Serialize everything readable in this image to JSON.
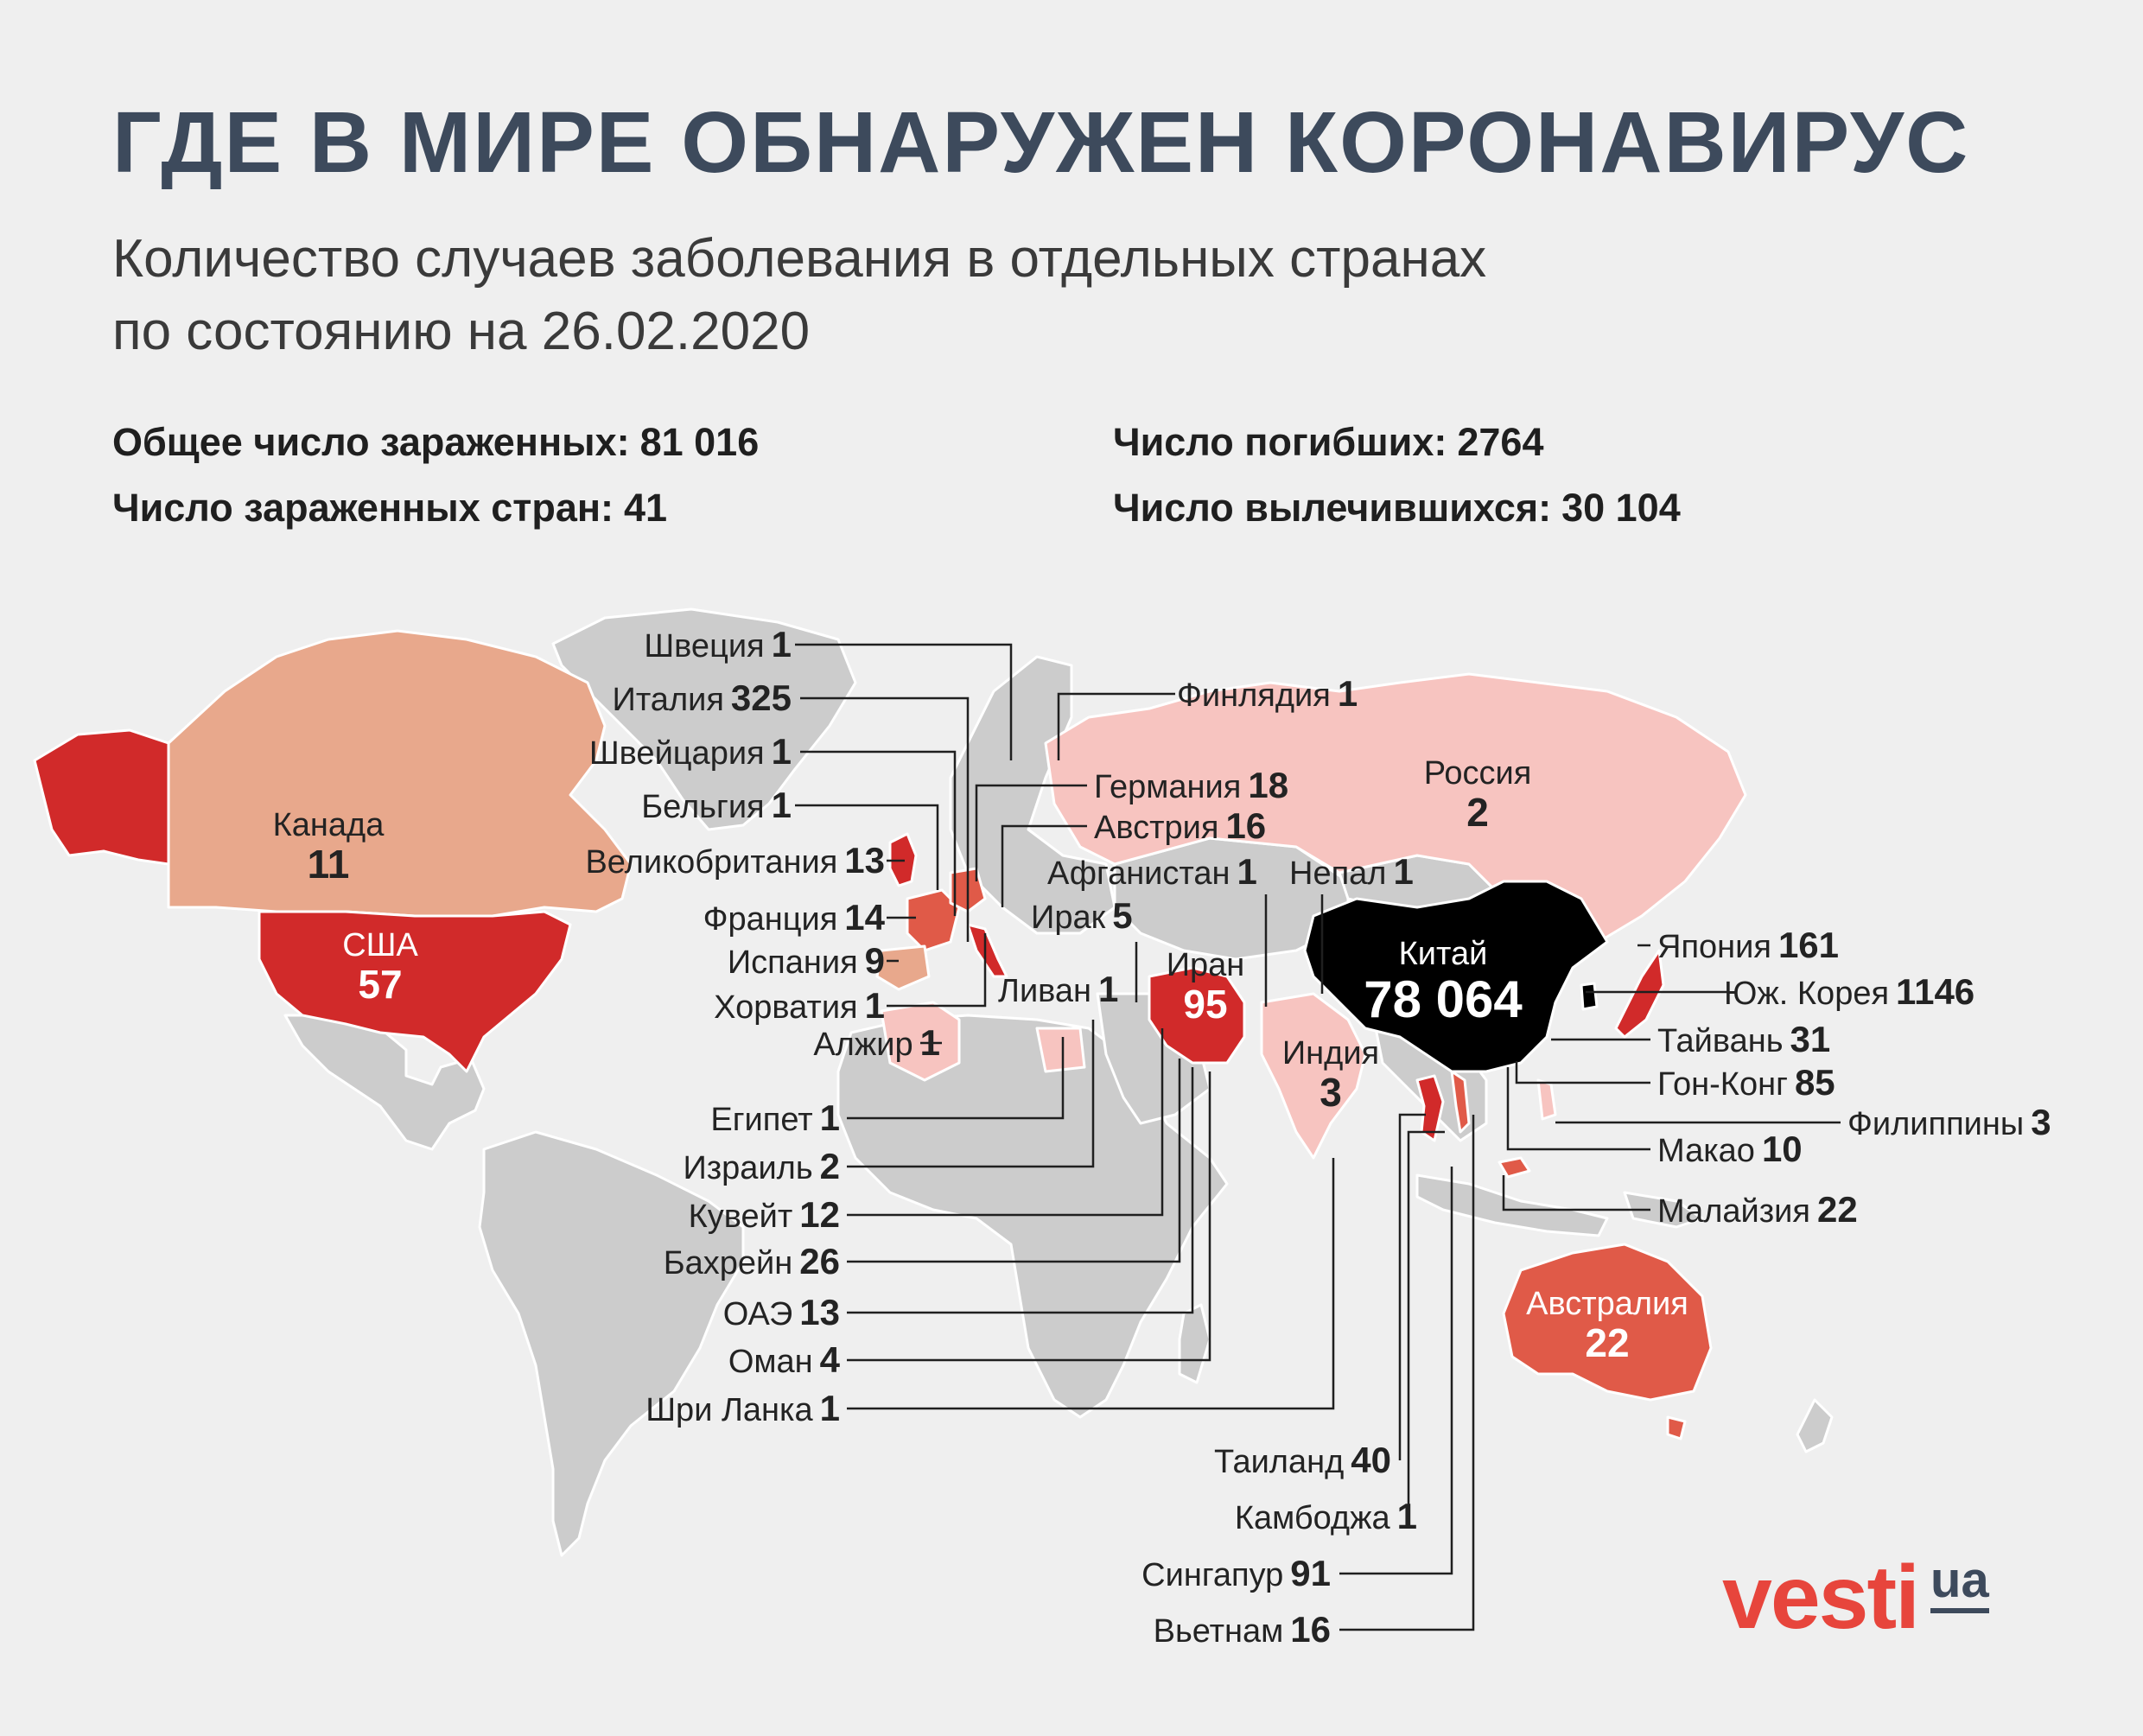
{
  "title": "ГДЕ В МИРЕ ОБНАРУЖЕН КОРОНАВИРУС",
  "subtitle": {
    "line1": "Количество случаев заболевания в отдельных странах",
    "line2": "по состоянию на 26.02.2020"
  },
  "stats": {
    "total_infected": {
      "label": "Общее число зараженных:",
      "value": "81 016"
    },
    "countries": {
      "label": "Число зараженных стран:",
      "value": "41"
    },
    "deaths": {
      "label": "Число погибших:",
      "value": "2764"
    },
    "recovered": {
      "label": "Число вылечившихся:",
      "value": "30 104"
    }
  },
  "colors": {
    "background": "#efefef",
    "land_unaffected": "#cccccc",
    "scale_lightest": "#f7c4c0",
    "scale_light": "#e8a88c",
    "scale_medium": "#e05a48",
    "scale_strong": "#d12a2a",
    "scale_max": "#000000",
    "title": "#3d4a5c",
    "logo": "#e7453c"
  },
  "regions": {
    "canada": {
      "name": "Канада",
      "value": "11"
    },
    "usa": {
      "name": "США",
      "value": "57"
    },
    "russia": {
      "name": "Россия",
      "value": "2"
    },
    "china": {
      "name": "Китай",
      "value": "78 064"
    },
    "iran": {
      "name": "Иран",
      "value": "95"
    },
    "india": {
      "name": "Индия",
      "value": "3"
    },
    "australia": {
      "name": "Австралия",
      "value": "22"
    }
  },
  "callouts": {
    "sweden": {
      "name": "Швеция",
      "value": "1"
    },
    "italy": {
      "name": "Италия",
      "value": "325"
    },
    "switzerland": {
      "name": "Швейцария",
      "value": "1"
    },
    "belgium": {
      "name": "Бельгия",
      "value": "1"
    },
    "uk": {
      "name": "Великобритания",
      "value": "13"
    },
    "france": {
      "name": "Франция",
      "value": "14"
    },
    "spain": {
      "name": "Испания",
      "value": "9"
    },
    "croatia": {
      "name": "Хорватия",
      "value": "1"
    },
    "algeria": {
      "name": "Алжир",
      "value": "1"
    },
    "finland": {
      "name": "Финлядия",
      "value": "1"
    },
    "germany": {
      "name": "Германия",
      "value": "18"
    },
    "austria": {
      "name": "Австрия",
      "value": "16"
    },
    "afghanistan": {
      "name": "Афганистан",
      "value": "1"
    },
    "nepal": {
      "name": "Непал",
      "value": "1"
    },
    "iraq": {
      "name": "Ирак",
      "value": "5"
    },
    "lebanon": {
      "name": "Ливан",
      "value": "1"
    },
    "egypt": {
      "name": "Египет",
      "value": "1"
    },
    "israel": {
      "name": "Израиль",
      "value": "2"
    },
    "kuwait": {
      "name": "Кувейт",
      "value": "12"
    },
    "bahrain": {
      "name": "Бахрейн",
      "value": "26"
    },
    "uae": {
      "name": "ОАЭ",
      "value": "13"
    },
    "oman": {
      "name": "Оман",
      "value": "4"
    },
    "srilanka": {
      "name": "Шри  Ланка",
      "value": "1"
    },
    "thailand": {
      "name": "Таиланд",
      "value": "40"
    },
    "cambodia": {
      "name": "Камбоджа",
      "value": "1"
    },
    "singapore": {
      "name": "Сингапур",
      "value": "91"
    },
    "vietnam": {
      "name": "Вьетнам",
      "value": "16"
    },
    "japan": {
      "name": "Япония",
      "value": "161"
    },
    "south_korea": {
      "name": "Юж. Корея",
      "value": "1146"
    },
    "taiwan": {
      "name": "Тайвань",
      "value": "31"
    },
    "hongkong": {
      "name": "Гон-Конг",
      "value": "85"
    },
    "philippines": {
      "name": "Филиппины",
      "value": "3"
    },
    "macau": {
      "name": "Макао",
      "value": "10"
    },
    "malaysia": {
      "name": "Малайзия",
      "value": "22"
    }
  },
  "logo": {
    "brand": "vesti",
    "suffix": "ua"
  }
}
